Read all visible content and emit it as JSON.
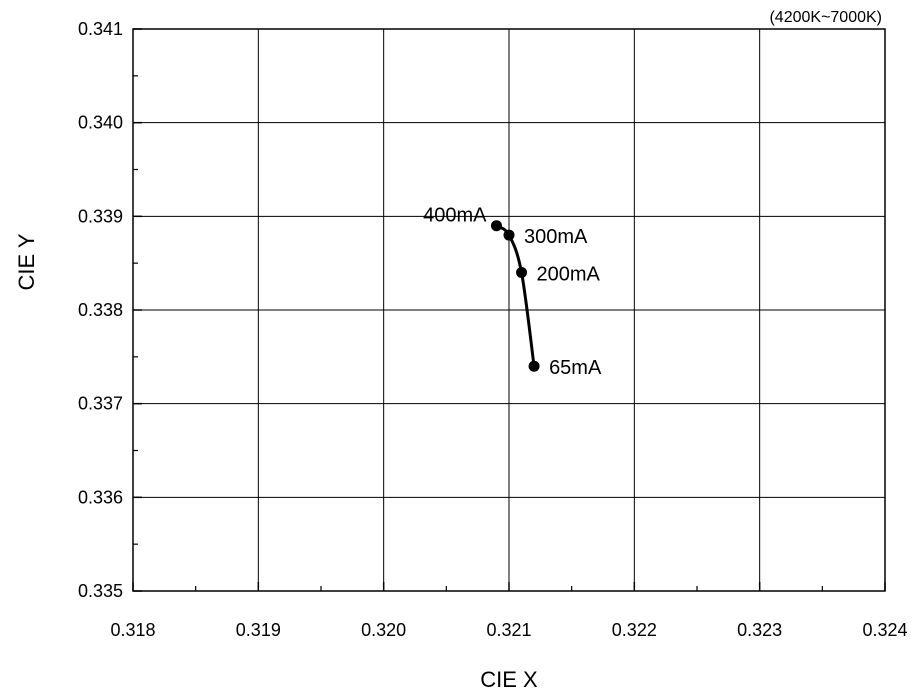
{
  "chart_data": {
    "type": "line",
    "note": "(4200K~7000K)",
    "xlabel": "CIE X",
    "ylabel": "CIE Y",
    "xlim": [
      0.318,
      0.324
    ],
    "ylim": [
      0.335,
      0.341
    ],
    "xticks": [
      "0.318",
      "0.319",
      "0.320",
      "0.321",
      "0.322",
      "0.323",
      "0.324"
    ],
    "yticks": [
      "0.335",
      "0.336",
      "0.337",
      "0.338",
      "0.339",
      "0.340",
      "0.341"
    ],
    "grid": true,
    "series": [
      {
        "points": [
          {
            "x": 0.3212,
            "y": 0.3374,
            "label": "65mA"
          },
          {
            "x": 0.3211,
            "y": 0.3384,
            "label": "200mA"
          },
          {
            "x": 0.321,
            "y": 0.3388,
            "label": "300mA"
          },
          {
            "x": 0.3209,
            "y": 0.3389,
            "label": "400mA"
          }
        ]
      }
    ]
  }
}
